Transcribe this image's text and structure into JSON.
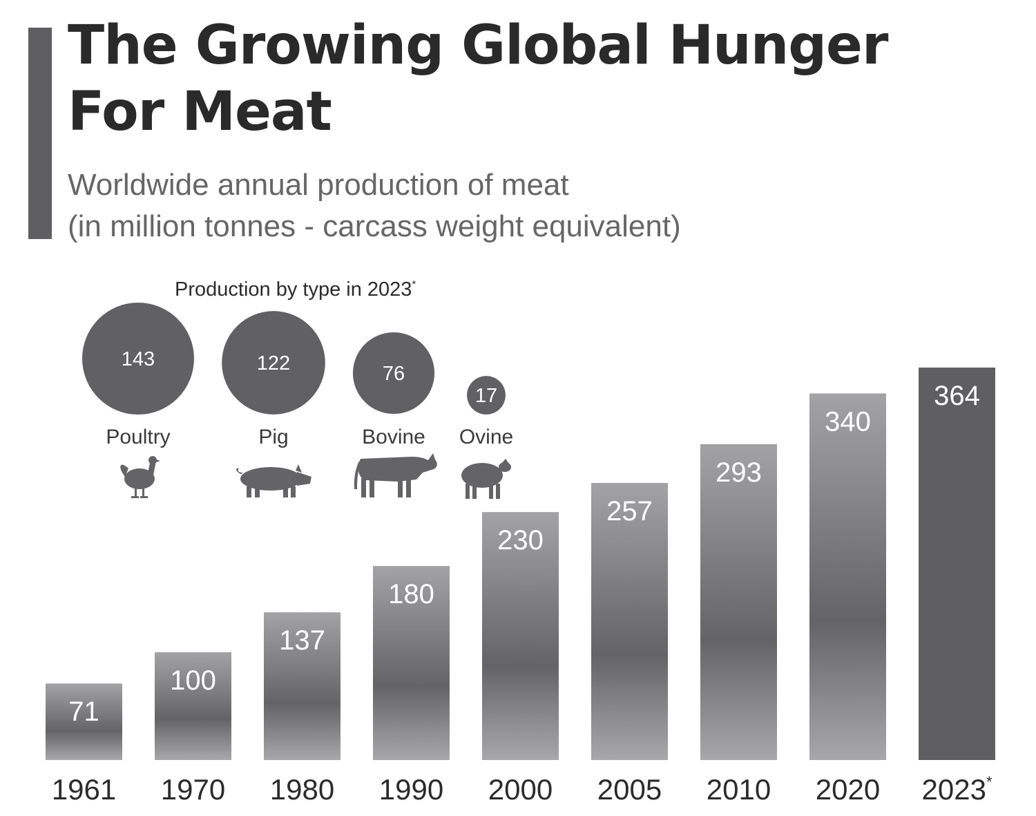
{
  "header": {
    "title_line1": "The Growing Global Hunger",
    "title_line2": "For Meat",
    "subtitle_line1": "Worldwide annual production of meat",
    "subtitle_line2": "(in million tonnes - carcass weight equivalent)"
  },
  "colors": {
    "accent": "#5f5f62",
    "bar_light": "#a3a3a5",
    "bar_dark": "#646467",
    "bar_highlight": "#5f5f62",
    "bubble": "#616164",
    "text": "#2b2b2b"
  },
  "chart_data": [
    {
      "type": "bar",
      "title": "Worldwide annual production of meat",
      "ylabel": "million tonnes - carcass weight equivalent",
      "xlabel": "",
      "categories": [
        "1961",
        "1970",
        "1980",
        "1990",
        "2000",
        "2005",
        "2010",
        "2020",
        "2023"
      ],
      "category_marks": [
        "",
        "",
        "",
        "",
        "",
        "",
        "",
        "",
        "*"
      ],
      "values": [
        71,
        100,
        137,
        180,
        230,
        257,
        293,
        340,
        364
      ],
      "highlight": "2023",
      "ylim": [
        0,
        364
      ],
      "grid": false,
      "legend": "none"
    },
    {
      "type": "bubble",
      "title": "Production by type in 2023",
      "title_mark": "*",
      "categories": [
        "Poultry",
        "Pig",
        "Bovine",
        "Ovine"
      ],
      "values": [
        143,
        122,
        76,
        17
      ],
      "icons": [
        "chicken-icon",
        "pig-icon",
        "cow-icon",
        "sheep-icon"
      ]
    }
  ]
}
